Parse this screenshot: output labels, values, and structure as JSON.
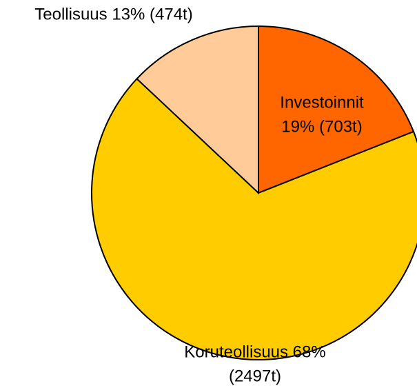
{
  "chart_data": {
    "type": "pie",
    "values": [
      19,
      68,
      13
    ],
    "value_labels": [
      [
        "Investoinnit",
        "19% (703t)"
      ],
      [
        "Koruteollisuus 68%",
        "(2497t)"
      ],
      [
        "Teollisuus 13% (474t)"
      ]
    ],
    "colors": [
      "#ff6600",
      "#ffcc00",
      "#ffcc99"
    ],
    "start_angle": 0,
    "direction": "clockwise"
  }
}
